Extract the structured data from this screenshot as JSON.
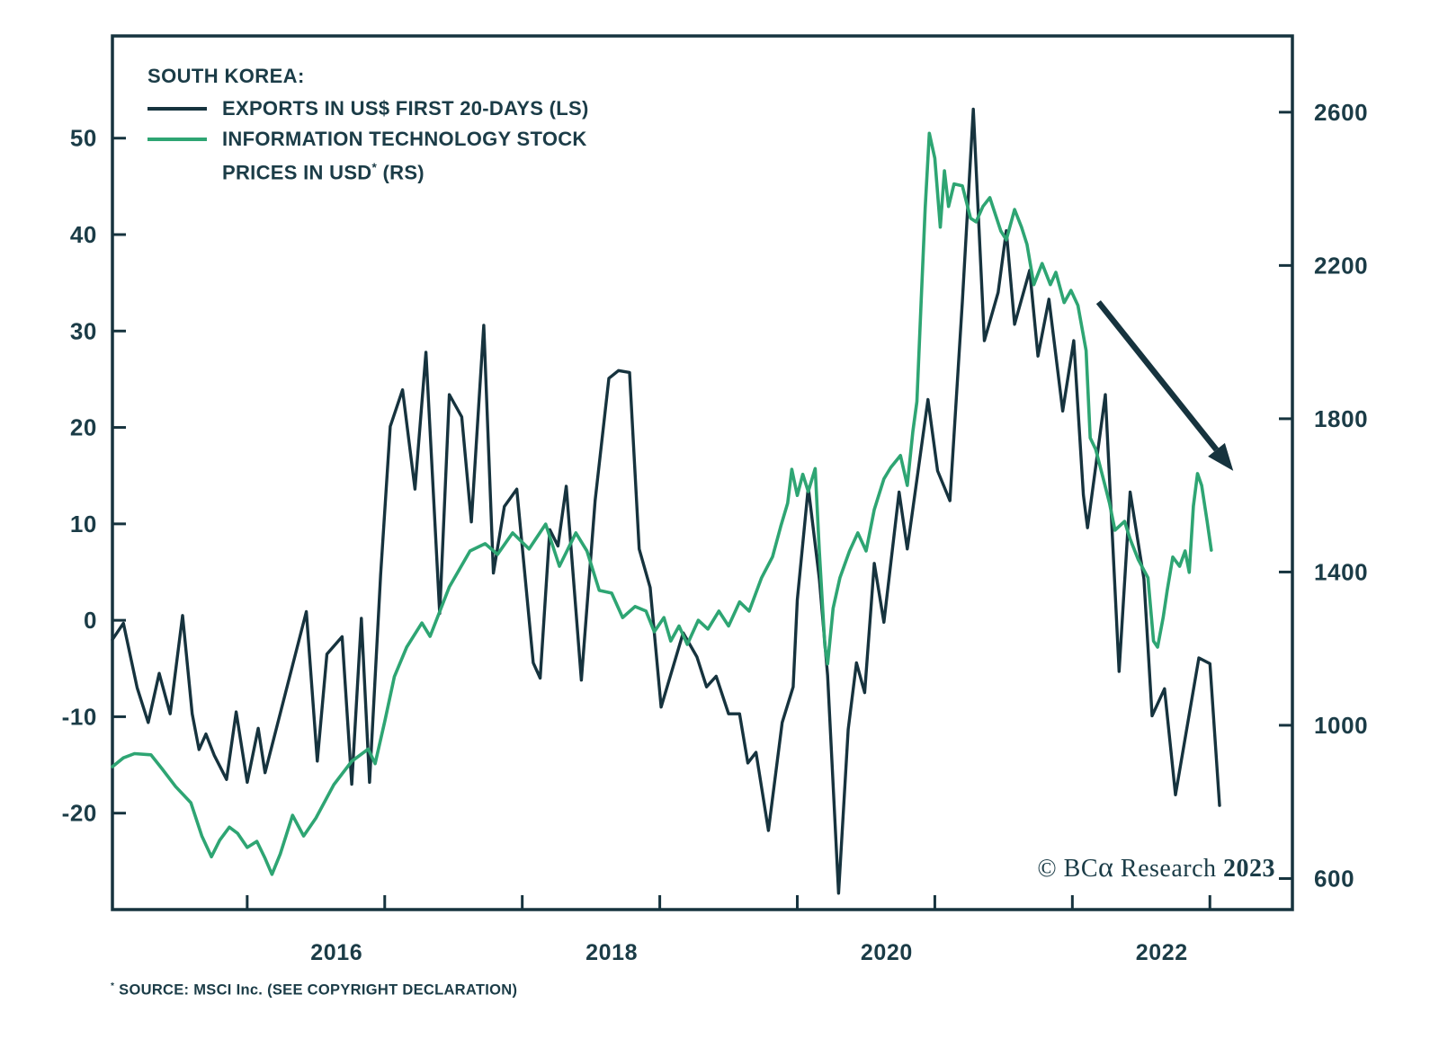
{
  "credit": "© BCα Research 2023",
  "footnote": "* SOURCE: MSCI Inc. (SEE COPYRIGHT DECLARATION)",
  "colors": {
    "navy": "#16333e",
    "green": "#2ea573",
    "text": "#1b3c47",
    "background": "#ffffff"
  },
  "legend": {
    "items": [
      {
        "series": 0,
        "lines": [
          "EXPORTS IN US$ FIRST 20-DAYS (LS)"
        ]
      },
      {
        "series": 1,
        "lines": [
          "INFORMATION TECHNOLOGY STOCK",
          "PRICES IN USD* (RS)"
        ]
      }
    ]
  },
  "chart_data": {
    "type": "line",
    "title": "SOUTH KOREA:",
    "grid": false,
    "legend_position": "top-left-inside",
    "x_axis": {
      "unit": "year",
      "min": 2015.02,
      "max": 2023.6,
      "ticks": [
        2016,
        2017,
        2018,
        2019,
        2020,
        2021,
        2022,
        2023
      ],
      "label_years": [
        2016,
        2018,
        2020,
        2022
      ],
      "label_center_offset": 0.65
    },
    "left_axis": {
      "ticks": [
        50,
        40,
        30,
        20,
        10,
        0,
        -10,
        -20
      ],
      "min": -30.0,
      "max": 60.6
    },
    "right_axis": {
      "ticks": [
        2600,
        2200,
        1800,
        1400,
        1000,
        600
      ],
      "min": 519,
      "max": 2799
    },
    "series": [
      {
        "name": "EXPORTS IN US$ FIRST 20-DAYS (LS)",
        "axis": "left",
        "color": "#16333e",
        "stroke_width": 3.4,
        "points": [
          [
            2015.02,
            -2.0
          ],
          [
            2015.1,
            -0.3
          ],
          [
            2015.2,
            -7.0
          ],
          [
            2015.28,
            -10.6
          ],
          [
            2015.36,
            -5.5
          ],
          [
            2015.44,
            -9.7
          ],
          [
            2015.53,
            0.5
          ],
          [
            2015.6,
            -9.7
          ],
          [
            2015.65,
            -13.4
          ],
          [
            2015.7,
            -11.8
          ],
          [
            2015.76,
            -14.0
          ],
          [
            2015.85,
            -16.5
          ],
          [
            2015.92,
            -9.5
          ],
          [
            2016.0,
            -16.8
          ],
          [
            2016.08,
            -11.2
          ],
          [
            2016.13,
            -15.8
          ],
          [
            2016.43,
            0.9
          ],
          [
            2016.51,
            -14.6
          ],
          [
            2016.58,
            -3.5
          ],
          [
            2016.69,
            -1.7
          ],
          [
            2016.76,
            -17.0
          ],
          [
            2016.83,
            0.2
          ],
          [
            2016.89,
            -16.8
          ],
          [
            2016.97,
            4.7
          ],
          [
            2017.04,
            20.1
          ],
          [
            2017.13,
            23.9
          ],
          [
            2017.22,
            13.6
          ],
          [
            2017.3,
            27.8
          ],
          [
            2017.4,
            0.7
          ],
          [
            2017.47,
            23.4
          ],
          [
            2017.56,
            21.1
          ],
          [
            2017.63,
            10.2
          ],
          [
            2017.72,
            30.6
          ],
          [
            2017.79,
            4.9
          ],
          [
            2017.87,
            11.8
          ],
          [
            2017.96,
            13.6
          ],
          [
            2018.08,
            -4.4
          ],
          [
            2018.13,
            -6.0
          ],
          [
            2018.2,
            9.4
          ],
          [
            2018.26,
            7.7
          ],
          [
            2018.32,
            13.9
          ],
          [
            2018.43,
            -6.2
          ],
          [
            2018.53,
            12.4
          ],
          [
            2018.63,
            25.1
          ],
          [
            2018.7,
            25.9
          ],
          [
            2018.78,
            25.7
          ],
          [
            2018.85,
            7.4
          ],
          [
            2018.93,
            3.4
          ],
          [
            2019.01,
            -9.0
          ],
          [
            2019.17,
            -1.3
          ],
          [
            2019.27,
            -3.8
          ],
          [
            2019.34,
            -6.9
          ],
          [
            2019.41,
            -5.8
          ],
          [
            2019.5,
            -9.7
          ],
          [
            2019.58,
            -9.7
          ],
          [
            2019.64,
            -14.8
          ],
          [
            2019.7,
            -13.7
          ],
          [
            2019.79,
            -21.8
          ],
          [
            2019.89,
            -10.6
          ],
          [
            2019.97,
            -6.9
          ],
          [
            2020.0,
            2.1
          ],
          [
            2020.08,
            13.8
          ],
          [
            2020.16,
            4.3
          ],
          [
            2020.22,
            -5.7
          ],
          [
            2020.3,
            -28.3
          ],
          [
            2020.37,
            -11.3
          ],
          [
            2020.43,
            -4.4
          ],
          [
            2020.49,
            -7.5
          ],
          [
            2020.56,
            5.9
          ],
          [
            2020.63,
            -0.2
          ],
          [
            2020.74,
            13.3
          ],
          [
            2020.8,
            7.4
          ],
          [
            2020.95,
            22.9
          ],
          [
            2021.02,
            15.5
          ],
          [
            2021.11,
            12.4
          ],
          [
            2021.2,
            33.0
          ],
          [
            2021.28,
            53.0
          ],
          [
            2021.36,
            29.0
          ],
          [
            2021.46,
            34.0
          ],
          [
            2021.52,
            40.4
          ],
          [
            2021.58,
            30.7
          ],
          [
            2021.69,
            36.3
          ],
          [
            2021.75,
            27.4
          ],
          [
            2021.83,
            33.3
          ],
          [
            2021.93,
            21.7
          ],
          [
            2022.01,
            29.0
          ],
          [
            2022.08,
            13.0
          ],
          [
            2022.11,
            9.6
          ],
          [
            2022.24,
            23.4
          ],
          [
            2022.34,
            -5.3
          ],
          [
            2022.42,
            13.3
          ],
          [
            2022.52,
            4.3
          ],
          [
            2022.58,
            -9.9
          ],
          [
            2022.67,
            -7.1
          ],
          [
            2022.75,
            -18.1
          ],
          [
            2022.92,
            -3.9
          ],
          [
            2023.0,
            -4.5
          ],
          [
            2023.07,
            -19.2
          ]
        ]
      },
      {
        "name": "INFORMATION TECHNOLOGY STOCK PRICES IN USD* (RS)",
        "axis": "right",
        "color": "#2ea573",
        "stroke_width": 3.6,
        "points": [
          [
            2015.02,
            892
          ],
          [
            2015.1,
            915
          ],
          [
            2015.18,
            926
          ],
          [
            2015.3,
            923
          ],
          [
            2015.38,
            887
          ],
          [
            2015.48,
            840
          ],
          [
            2015.59,
            798
          ],
          [
            2015.67,
            711
          ],
          [
            2015.74,
            657
          ],
          [
            2015.8,
            700
          ],
          [
            2015.87,
            734
          ],
          [
            2015.93,
            718
          ],
          [
            2016.0,
            681
          ],
          [
            2016.07,
            697
          ],
          [
            2016.13,
            653
          ],
          [
            2016.18,
            611
          ],
          [
            2016.24,
            664
          ],
          [
            2016.33,
            765
          ],
          [
            2016.41,
            711
          ],
          [
            2016.5,
            758
          ],
          [
            2016.63,
            845
          ],
          [
            2016.76,
            906
          ],
          [
            2016.88,
            938
          ],
          [
            2016.93,
            900
          ],
          [
            2017.0,
            1010
          ],
          [
            2017.07,
            1127
          ],
          [
            2017.16,
            1204
          ],
          [
            2017.27,
            1267
          ],
          [
            2017.33,
            1232
          ],
          [
            2017.47,
            1361
          ],
          [
            2017.62,
            1455
          ],
          [
            2017.73,
            1474
          ],
          [
            2017.82,
            1446
          ],
          [
            2017.93,
            1502
          ],
          [
            2018.05,
            1460
          ],
          [
            2018.17,
            1525
          ],
          [
            2018.27,
            1415
          ],
          [
            2018.39,
            1502
          ],
          [
            2018.47,
            1455
          ],
          [
            2018.56,
            1352
          ],
          [
            2018.65,
            1345
          ],
          [
            2018.73,
            1281
          ],
          [
            2018.82,
            1310
          ],
          [
            2018.9,
            1298
          ],
          [
            2018.96,
            1244
          ],
          [
            2019.03,
            1281
          ],
          [
            2019.08,
            1220
          ],
          [
            2019.14,
            1259
          ],
          [
            2019.2,
            1211
          ],
          [
            2019.28,
            1274
          ],
          [
            2019.35,
            1251
          ],
          [
            2019.43,
            1298
          ],
          [
            2019.5,
            1259
          ],
          [
            2019.58,
            1322
          ],
          [
            2019.65,
            1298
          ],
          [
            2019.74,
            1385
          ],
          [
            2019.82,
            1440
          ],
          [
            2019.88,
            1520
          ],
          [
            2019.93,
            1580
          ],
          [
            2019.96,
            1668
          ],
          [
            2020.0,
            1600
          ],
          [
            2020.04,
            1655
          ],
          [
            2020.08,
            1610
          ],
          [
            2020.13,
            1670
          ],
          [
            2020.16,
            1455
          ],
          [
            2020.2,
            1209
          ],
          [
            2020.22,
            1160
          ],
          [
            2020.26,
            1305
          ],
          [
            2020.31,
            1385
          ],
          [
            2020.38,
            1455
          ],
          [
            2020.44,
            1502
          ],
          [
            2020.5,
            1455
          ],
          [
            2020.56,
            1563
          ],
          [
            2020.63,
            1643
          ],
          [
            2020.68,
            1673
          ],
          [
            2020.75,
            1704
          ],
          [
            2020.8,
            1626
          ],
          [
            2020.84,
            1767
          ],
          [
            2020.87,
            1845
          ],
          [
            2020.9,
            2100
          ],
          [
            2020.93,
            2350
          ],
          [
            2020.96,
            2545
          ],
          [
            2021.0,
            2480
          ],
          [
            2021.04,
            2300
          ],
          [
            2021.07,
            2447
          ],
          [
            2021.1,
            2354
          ],
          [
            2021.14,
            2413
          ],
          [
            2021.2,
            2408
          ],
          [
            2021.26,
            2323
          ],
          [
            2021.3,
            2314
          ],
          [
            2021.35,
            2354
          ],
          [
            2021.4,
            2377
          ],
          [
            2021.48,
            2290
          ],
          [
            2021.52,
            2267
          ],
          [
            2021.58,
            2346
          ],
          [
            2021.63,
            2300
          ],
          [
            2021.67,
            2255
          ],
          [
            2021.72,
            2150
          ],
          [
            2021.78,
            2205
          ],
          [
            2021.84,
            2150
          ],
          [
            2021.88,
            2182
          ],
          [
            2021.94,
            2103
          ],
          [
            2021.99,
            2135
          ],
          [
            2022.04,
            2096
          ],
          [
            2022.1,
            1978
          ],
          [
            2022.13,
            1750
          ],
          [
            2022.17,
            1720
          ],
          [
            2022.22,
            1650
          ],
          [
            2022.27,
            1580
          ],
          [
            2022.31,
            1509
          ],
          [
            2022.38,
            1532
          ],
          [
            2022.42,
            1486
          ],
          [
            2022.48,
            1432
          ],
          [
            2022.55,
            1385
          ],
          [
            2022.59,
            1220
          ],
          [
            2022.62,
            1204
          ],
          [
            2022.66,
            1281
          ],
          [
            2022.69,
            1352
          ],
          [
            2022.73,
            1439
          ],
          [
            2022.78,
            1415
          ],
          [
            2022.82,
            1455
          ],
          [
            2022.85,
            1399
          ],
          [
            2022.88,
            1572
          ],
          [
            2022.91,
            1657
          ],
          [
            2022.94,
            1626
          ],
          [
            2022.98,
            1532
          ],
          [
            2023.01,
            1457
          ]
        ]
      }
    ],
    "annotations": [
      {
        "type": "arrow",
        "axis": "left",
        "from": [
          2022.19,
          33.0
        ],
        "to": [
          2023.17,
          15.5
        ],
        "color": "#16333e"
      }
    ]
  }
}
